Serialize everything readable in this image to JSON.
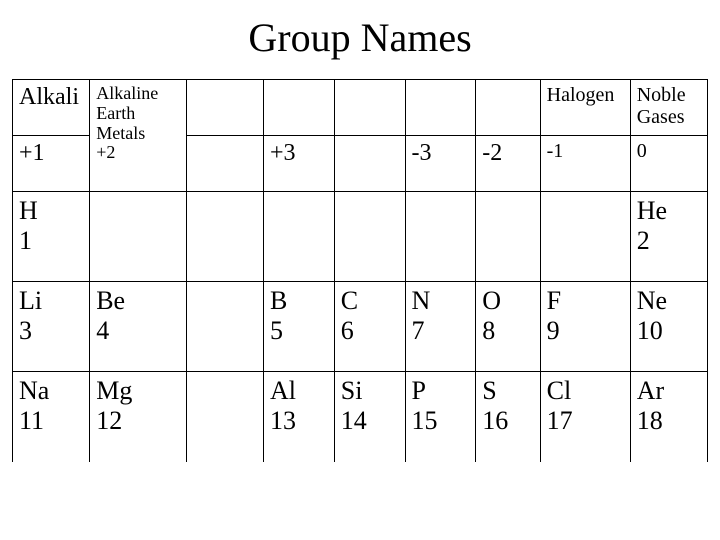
{
  "title": "Group Names",
  "colors": {
    "background": "#ffffff",
    "text": "#000000",
    "border": "#000000"
  },
  "columns": 9,
  "rows": [
    [
      {
        "lines": [
          "Alkali"
        ],
        "fs": "fs-lg"
      },
      {
        "lines": [
          "Alkaline",
          "Earth"
        ],
        "fs": "fs-sm"
      },
      {
        "lines": []
      },
      {
        "lines": []
      },
      {
        "lines": []
      },
      {
        "lines": []
      },
      {
        "lines": []
      },
      {
        "lines": [
          "Halogen"
        ],
        "fs": "fs-md"
      },
      {
        "lines": [
          "Noble",
          "Gases"
        ],
        "fs": "fs-md"
      }
    ],
    [
      {
        "lines": [
          "+1"
        ],
        "fs": "fs-lg"
      },
      {
        "lines": [
          "Metals",
          "+2"
        ],
        "fs": "fs-sm"
      },
      {
        "lines": []
      },
      {
        "lines": [
          "+3"
        ],
        "fs": "fs-lg"
      },
      {
        "lines": []
      },
      {
        "lines": [
          "-3"
        ],
        "fs": "fs-lg"
      },
      {
        "lines": [
          "-2"
        ],
        "fs": "fs-lg"
      },
      {
        "lines": [
          "-1"
        ],
        "fs": "fs-md"
      },
      {
        "lines": [
          "0"
        ],
        "fs": "fs-md"
      }
    ],
    [
      {
        "lines": [
          "H",
          "1"
        ],
        "fs": "fs-xl"
      },
      {
        "lines": []
      },
      {
        "lines": []
      },
      {
        "lines": []
      },
      {
        "lines": []
      },
      {
        "lines": []
      },
      {
        "lines": []
      },
      {
        "lines": []
      },
      {
        "lines": [
          "He",
          "2"
        ],
        "fs": "fs-xl"
      }
    ],
    [
      {
        "lines": [
          "Li",
          "3"
        ],
        "fs": "fs-xl"
      },
      {
        "lines": [
          "Be",
          "4"
        ],
        "fs": "fs-xl"
      },
      {
        "lines": []
      },
      {
        "lines": [
          "B",
          "5"
        ],
        "fs": "fs-xl"
      },
      {
        "lines": [
          "C",
          "6"
        ],
        "fs": "fs-xl"
      },
      {
        "lines": [
          "N",
          "7"
        ],
        "fs": "fs-xl"
      },
      {
        "lines": [
          "O",
          "8"
        ],
        "fs": "fs-xl"
      },
      {
        "lines": [
          "F",
          "9"
        ],
        "fs": "fs-xl"
      },
      {
        "lines": [
          "Ne",
          "10"
        ],
        "fs": "fs-xl"
      }
    ],
    [
      {
        "lines": [
          "Na",
          "11"
        ],
        "fs": "fs-xl"
      },
      {
        "lines": [
          "Mg",
          "12"
        ],
        "fs": "fs-xl"
      },
      {
        "lines": []
      },
      {
        "lines": [
          "Al",
          "13"
        ],
        "fs": "fs-xl"
      },
      {
        "lines": [
          "Si",
          "14"
        ],
        "fs": "fs-xl"
      },
      {
        "lines": [
          "P",
          "15"
        ],
        "fs": "fs-xl"
      },
      {
        "lines": [
          "S",
          "16"
        ],
        "fs": "fs-xl"
      },
      {
        "lines": [
          "Cl",
          "17"
        ],
        "fs": "fs-xl"
      },
      {
        "lines": [
          "Ar",
          "18"
        ],
        "fs": "fs-xl"
      }
    ]
  ],
  "row_classes": [
    "header-row",
    "header-row",
    "body-row",
    "body-row",
    "body-row last-row"
  ],
  "merge_header_col1": true
}
